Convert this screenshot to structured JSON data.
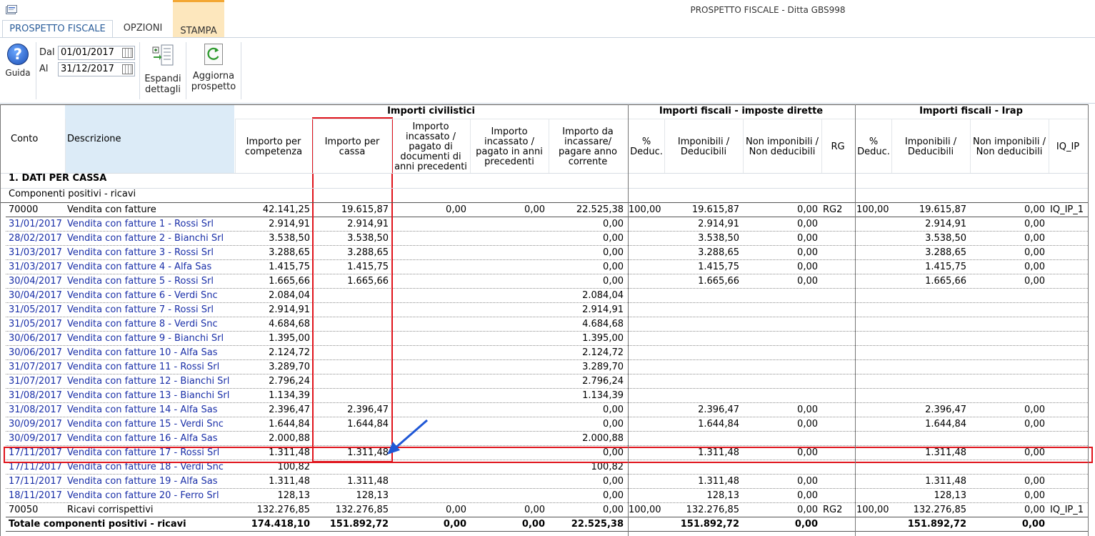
{
  "window": {
    "title": "PROSPETTO FISCALE - Ditta GBS998"
  },
  "tabs": [
    {
      "label": "PROSPETTO FISCALE"
    },
    {
      "label": "OPZIONI"
    },
    {
      "label": "STAMPA"
    }
  ],
  "ribbon": {
    "help_label": "Guida",
    "dal_label": "Dal",
    "dal_value": "01/01/2017",
    "al_label": "Al",
    "al_value": "31/12/2017",
    "expand_label_1": "Espandi",
    "expand_label_2": "dettagli",
    "refresh_label_1": "Aggiorna",
    "refresh_label_2": "prospetto"
  },
  "table": {
    "groups": {
      "civil": "Importi civilistici",
      "direct": "Importi fiscali - imposte dirette",
      "irap": "Importi fiscali - Irap"
    },
    "headers": {
      "conto": "Conto",
      "descrizione": "Descrizione",
      "competenza_1": "Importo per",
      "competenza_2": "competenza",
      "cassa_1": "Importo per",
      "cassa_2": "cassa",
      "prec_1": "Importo",
      "prec_2": "incassato /",
      "prec_3": "pagato di",
      "prec_4": "documenti di",
      "prec_5": "anni precedenti",
      "inc_1": "Importo",
      "inc_2": "incassato /",
      "inc_3": "pagato in anni",
      "inc_4": "precedenti",
      "daInc_1": "Importo da",
      "daInc_2": "incassare/",
      "daInc_3": "pagare anno",
      "daInc_4": "corrente",
      "ded_1": "%",
      "ded_2": "Deduc.",
      "imp_1": "Imponibili /",
      "imp_2": "Deducibili",
      "nonimp_1": "Non imponibili /",
      "nonimp_2": "Non deducibili",
      "rg": "RG",
      "ided_1": "%",
      "ided_2": "Deduc.",
      "iimp_1": "Imponibili /",
      "iimp_2": "Deducibili",
      "inonimp_1": "Non imponibili /",
      "inonimp_2": "Non deducibili",
      "iq": "IQ_IP"
    },
    "section": "1. DATI PER CASSA",
    "subsection": "Componenti positivi - ricavi",
    "rows": [
      {
        "conto": "70000",
        "desc": "Vendita con fatture",
        "comp": "42.141,25",
        "cassa": "19.615,87",
        "prec": "0,00",
        "inc": "0,00",
        "daInc": "22.525,38",
        "ded": "100,00",
        "imp": "19.615,87",
        "nonimp": "0,00",
        "rg": "RG2",
        "ided": "100,00",
        "iimp": "19.615,87",
        "inonimp": "0,00",
        "iq": "IQ_IP_1",
        "style": "black"
      },
      {
        "conto": "31/01/2017",
        "desc": "Vendita con fatture 1 - Rossi Srl",
        "comp": "2.914,91",
        "cassa": "2.914,91",
        "prec": "",
        "inc": "",
        "daInc": "0,00",
        "ded": "",
        "imp": "2.914,91",
        "nonimp": "0,00",
        "rg": "",
        "ided": "",
        "iimp": "2.914,91",
        "inonimp": "0,00",
        "iq": "",
        "style": "blue"
      },
      {
        "conto": "28/02/2017",
        "desc": "Vendita con fatture 2 - Bianchi Srl",
        "comp": "3.538,50",
        "cassa": "3.538,50",
        "prec": "",
        "inc": "",
        "daInc": "0,00",
        "ded": "",
        "imp": "3.538,50",
        "nonimp": "0,00",
        "rg": "",
        "ided": "",
        "iimp": "3.538,50",
        "inonimp": "0,00",
        "iq": "",
        "style": "blue"
      },
      {
        "conto": "31/03/2017",
        "desc": "Vendita con fatture 3 - Rossi Srl",
        "comp": "3.288,65",
        "cassa": "3.288,65",
        "prec": "",
        "inc": "",
        "daInc": "0,00",
        "ded": "",
        "imp": "3.288,65",
        "nonimp": "0,00",
        "rg": "",
        "ided": "",
        "iimp": "3.288,65",
        "inonimp": "0,00",
        "iq": "",
        "style": "blue"
      },
      {
        "conto": "31/03/2017",
        "desc": "Vendita con fatture 4 - Alfa Sas",
        "comp": "1.415,75",
        "cassa": "1.415,75",
        "prec": "",
        "inc": "",
        "daInc": "0,00",
        "ded": "",
        "imp": "1.415,75",
        "nonimp": "0,00",
        "rg": "",
        "ided": "",
        "iimp": "1.415,75",
        "inonimp": "0,00",
        "iq": "",
        "style": "blue"
      },
      {
        "conto": "30/04/2017",
        "desc": "Vendita con fatture 5 - Rossi Srl",
        "comp": "1.665,66",
        "cassa": "1.665,66",
        "prec": "",
        "inc": "",
        "daInc": "0,00",
        "ded": "",
        "imp": "1.665,66",
        "nonimp": "0,00",
        "rg": "",
        "ided": "",
        "iimp": "1.665,66",
        "inonimp": "0,00",
        "iq": "",
        "style": "blue"
      },
      {
        "conto": "30/04/2017",
        "desc": "Vendita con fatture 6 - Verdi Snc",
        "comp": "2.084,04",
        "cassa": "",
        "prec": "",
        "inc": "",
        "daInc": "2.084,04",
        "ded": "",
        "imp": "",
        "nonimp": "",
        "rg": "",
        "ided": "",
        "iimp": "",
        "inonimp": "",
        "iq": "",
        "style": "blue"
      },
      {
        "conto": "31/05/2017",
        "desc": "Vendita con fatture 7 - Rossi Srl",
        "comp": "2.914,91",
        "cassa": "",
        "prec": "",
        "inc": "",
        "daInc": "2.914,91",
        "ded": "",
        "imp": "",
        "nonimp": "",
        "rg": "",
        "ided": "",
        "iimp": "",
        "inonimp": "",
        "iq": "",
        "style": "blue"
      },
      {
        "conto": "31/05/2017",
        "desc": "Vendita con fatture 8 - Verdi Snc",
        "comp": "4.684,68",
        "cassa": "",
        "prec": "",
        "inc": "",
        "daInc": "4.684,68",
        "ded": "",
        "imp": "",
        "nonimp": "",
        "rg": "",
        "ided": "",
        "iimp": "",
        "inonimp": "",
        "iq": "",
        "style": "blue"
      },
      {
        "conto": "30/06/2017",
        "desc": "Vendita con fatture 9 - Bianchi Srl",
        "comp": "1.395,00",
        "cassa": "",
        "prec": "",
        "inc": "",
        "daInc": "1.395,00",
        "ded": "",
        "imp": "",
        "nonimp": "",
        "rg": "",
        "ided": "",
        "iimp": "",
        "inonimp": "",
        "iq": "",
        "style": "blue"
      },
      {
        "conto": "30/06/2017",
        "desc": "Vendita con fatture 10 - Alfa Sas",
        "comp": "2.124,72",
        "cassa": "",
        "prec": "",
        "inc": "",
        "daInc": "2.124,72",
        "ded": "",
        "imp": "",
        "nonimp": "",
        "rg": "",
        "ided": "",
        "iimp": "",
        "inonimp": "",
        "iq": "",
        "style": "blue"
      },
      {
        "conto": "31/07/2017",
        "desc": "Vendita con fatture 11 - Rossi Srl",
        "comp": "3.289,70",
        "cassa": "",
        "prec": "",
        "inc": "",
        "daInc": "3.289,70",
        "ded": "",
        "imp": "",
        "nonimp": "",
        "rg": "",
        "ided": "",
        "iimp": "",
        "inonimp": "",
        "iq": "",
        "style": "blue"
      },
      {
        "conto": "31/07/2017",
        "desc": "Vendita con fatture 12 - Bianchi Srl",
        "comp": "2.796,24",
        "cassa": "",
        "prec": "",
        "inc": "",
        "daInc": "2.796,24",
        "ded": "",
        "imp": "",
        "nonimp": "",
        "rg": "",
        "ided": "",
        "iimp": "",
        "inonimp": "",
        "iq": "",
        "style": "blue"
      },
      {
        "conto": "31/08/2017",
        "desc": "Vendita con fatture 13 - Bianchi Srl",
        "comp": "1.134,39",
        "cassa": "",
        "prec": "",
        "inc": "",
        "daInc": "1.134,39",
        "ded": "",
        "imp": "",
        "nonimp": "",
        "rg": "",
        "ided": "",
        "iimp": "",
        "inonimp": "",
        "iq": "",
        "style": "blue"
      },
      {
        "conto": "31/08/2017",
        "desc": "Vendita con fatture 14 - Alfa Sas",
        "comp": "2.396,47",
        "cassa": "2.396,47",
        "prec": "",
        "inc": "",
        "daInc": "0,00",
        "ded": "",
        "imp": "2.396,47",
        "nonimp": "0,00",
        "rg": "",
        "ided": "",
        "iimp": "2.396,47",
        "inonimp": "0,00",
        "iq": "",
        "style": "blue"
      },
      {
        "conto": "30/09/2017",
        "desc": "Vendita con fatture 15 - Verdi Snc",
        "comp": "1.644,84",
        "cassa": "1.644,84",
        "prec": "",
        "inc": "",
        "daInc": "0,00",
        "ded": "",
        "imp": "1.644,84",
        "nonimp": "0,00",
        "rg": "",
        "ided": "",
        "iimp": "1.644,84",
        "inonimp": "0,00",
        "iq": "",
        "style": "blue"
      },
      {
        "conto": "30/09/2017",
        "desc": "Vendita con fatture 16 - Alfa Sas",
        "comp": "2.000,88",
        "cassa": "",
        "prec": "",
        "inc": "",
        "daInc": "2.000,88",
        "ded": "",
        "imp": "",
        "nonimp": "",
        "rg": "",
        "ided": "",
        "iimp": "",
        "inonimp": "",
        "iq": "",
        "style": "blue"
      },
      {
        "conto": "17/11/2017",
        "desc": "Vendita con fatture 17 - Rossi Srl",
        "comp": "1.311,48",
        "cassa": "1.311,48",
        "prec": "",
        "inc": "",
        "daInc": "0,00",
        "ded": "",
        "imp": "1.311,48",
        "nonimp": "0,00",
        "rg": "",
        "ided": "",
        "iimp": "1.311,48",
        "inonimp": "0,00",
        "iq": "",
        "style": "blue"
      },
      {
        "conto": "17/11/2017",
        "desc": "Vendita con fatture 18 - Verdi Snc",
        "comp": "100,82",
        "cassa": "",
        "prec": "",
        "inc": "",
        "daInc": "100,82",
        "ded": "",
        "imp": "",
        "nonimp": "",
        "rg": "",
        "ided": "",
        "iimp": "",
        "inonimp": "",
        "iq": "",
        "style": "blue"
      },
      {
        "conto": "17/11/2017",
        "desc": "Vendita con fatture 19 - Alfa Sas",
        "comp": "1.311,48",
        "cassa": "1.311,48",
        "prec": "",
        "inc": "",
        "daInc": "0,00",
        "ded": "",
        "imp": "1.311,48",
        "nonimp": "0,00",
        "rg": "",
        "ided": "",
        "iimp": "1.311,48",
        "inonimp": "0,00",
        "iq": "",
        "style": "blue"
      },
      {
        "conto": "18/11/2017",
        "desc": "Vendita con fatture 20 - Ferro Srl",
        "comp": "128,13",
        "cassa": "128,13",
        "prec": "",
        "inc": "",
        "daInc": "0,00",
        "ded": "",
        "imp": "128,13",
        "nonimp": "0,00",
        "rg": "",
        "ided": "",
        "iimp": "128,13",
        "inonimp": "0,00",
        "iq": "",
        "style": "blue"
      },
      {
        "conto": "70050",
        "desc": "Ricavi corrispettivi",
        "comp": "132.276,85",
        "cassa": "132.276,85",
        "prec": "0,00",
        "inc": "0,00",
        "daInc": "0,00",
        "ded": "100,00",
        "imp": "132.276,85",
        "nonimp": "0,00",
        "rg": "RG2",
        "ided": "100,00",
        "iimp": "132.276,85",
        "inonimp": "0,00",
        "iq": "IQ_IP_1",
        "style": "black"
      },
      {
        "conto": "Totale componenti positivi - ricavi",
        "desc": "",
        "comp": "174.418,10",
        "cassa": "151.892,72",
        "prec": "0,00",
        "inc": "0,00",
        "daInc": "22.525,38",
        "ded": "",
        "imp": "151.892,72",
        "nonimp": "0,00",
        "rg": "",
        "ided": "",
        "iimp": "151.892,72",
        "inonimp": "0,00",
        "iq": "",
        "style": "bold"
      }
    ]
  },
  "colors": {
    "link_blue": "#1a2fa8",
    "highlight_red": "#e0141c",
    "arrow_blue": "#1f57d6",
    "header_desc_bg": "#dcebf7",
    "tab_stampa_bg": "#fde7bd",
    "tab_stampa_accent": "#f3a733"
  },
  "icons": {
    "app": "app-window-icon",
    "help": "help-question-icon",
    "calendar": "calendar-icon",
    "expand": "expand-details-icon",
    "refresh": "refresh-icon",
    "annotation_arrow": "arrow-annotation-icon"
  }
}
